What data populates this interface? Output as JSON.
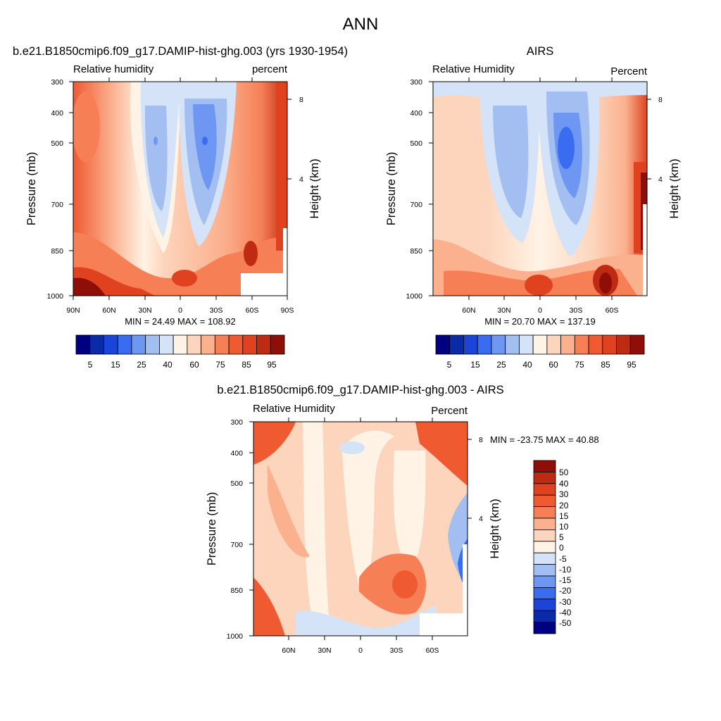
{
  "page": {
    "title": "ANN"
  },
  "chart_data": [
    {
      "id": "model",
      "type": "heatmap",
      "title": "b.e21.B1850cmip6.f09_g17.DAMIP-hist-ghg.003 (yrs 1930-1954)",
      "left_label": "Relative humidity",
      "right_label": "percent",
      "ylabel": "Pressure (mb)",
      "y2label": "Height (km)",
      "yticks": [
        "300",
        "400",
        "500",
        "700",
        "850",
        "1000"
      ],
      "y2ticks": [
        "8",
        "4"
      ],
      "xticks": [
        "90N",
        "60N",
        "30N",
        "0",
        "30S",
        "60S",
        "90S"
      ],
      "xlim": [
        90,
        -90
      ],
      "ylim": [
        1000,
        300
      ],
      "stats": "MIN =  24.49  MAX = 108.92",
      "colorbar_labels": [
        "5",
        "15",
        "25",
        "40",
        "60",
        "75",
        "85",
        "95"
      ]
    },
    {
      "id": "obs",
      "type": "heatmap",
      "title": "AIRS",
      "left_label": "Relative Humidity",
      "right_label": "Percent",
      "ylabel": "Pressure (mb)",
      "y2label": "Height (km)",
      "yticks": [
        "300",
        "400",
        "500",
        "700",
        "850",
        "1000"
      ],
      "y2ticks": [
        "8",
        "4"
      ],
      "xticks": [
        "60N",
        "30N",
        "0",
        "30S",
        "60S"
      ],
      "xlim": [
        90,
        -90
      ],
      "ylim": [
        1000,
        300
      ],
      "stats": "MIN =  20.70  MAX = 137.19",
      "colorbar_labels": [
        "5",
        "15",
        "25",
        "40",
        "60",
        "75",
        "85",
        "95"
      ]
    },
    {
      "id": "diff",
      "type": "heatmap",
      "title": "b.e21.B1850cmip6.f09_g17.DAMIP-hist-ghg.003 - AIRS",
      "left_label": "Relative Humidity",
      "right_label": "Percent",
      "ylabel": "Pressure (mb)",
      "y2label": "Height (km)",
      "yticks": [
        "300",
        "400",
        "500",
        "700",
        "850",
        "1000"
      ],
      "y2ticks": [
        "8",
        "4"
      ],
      "xticks": [
        "60N",
        "30N",
        "0",
        "30S",
        "60S"
      ],
      "xlim": [
        90,
        -90
      ],
      "ylim": [
        1000,
        300
      ],
      "stats": "MIN = -23.75  MAX =  40.88",
      "colorbar_labels": [
        "50",
        "40",
        "30",
        "20",
        "15",
        "10",
        "5",
        "0",
        "-5",
        "-10",
        "-15",
        "-20",
        "-30",
        "-40",
        "-50"
      ]
    }
  ],
  "palette": {
    "abs": [
      "#000080",
      "#0a2aa8",
      "#1a45d8",
      "#3a6cf2",
      "#6d97f3",
      "#a3bff2",
      "#d4e3f7",
      "#fff3e6",
      "#fdd5bc",
      "#fbb08e",
      "#f67f56",
      "#ef5a31",
      "#e0421f",
      "#bf2a12",
      "#8f0f08"
    ],
    "diff": [
      "#000080",
      "#0a2aa8",
      "#1a45d8",
      "#3a6cf2",
      "#6d97f3",
      "#a3bff2",
      "#d4e3f7",
      "#fff3e6",
      "#fdd5bc",
      "#fbb08e",
      "#f67f56",
      "#ef5a31",
      "#e0421f",
      "#bf2a12",
      "#8f0f08"
    ]
  }
}
